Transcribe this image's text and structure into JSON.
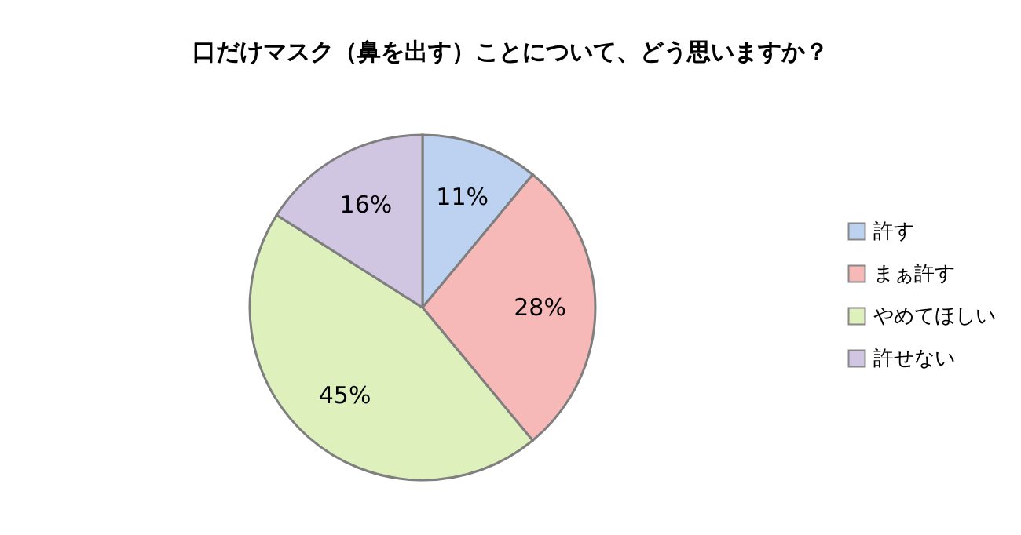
{
  "chart_data": {
    "type": "pie",
    "title": "口だけマスク（鼻を出す）ことについて、どう思いますか？",
    "categories": [
      "許す",
      "まぁ許す",
      "やめてほしい",
      "許せない"
    ],
    "values": [
      11,
      28,
      45,
      16
    ],
    "value_labels": [
      "11%",
      "28%",
      "45%",
      "16%"
    ],
    "colors": [
      "#bcd2f0",
      "#f7b8b8",
      "#def1bd",
      "#d0c6e2"
    ],
    "legend": "right"
  }
}
